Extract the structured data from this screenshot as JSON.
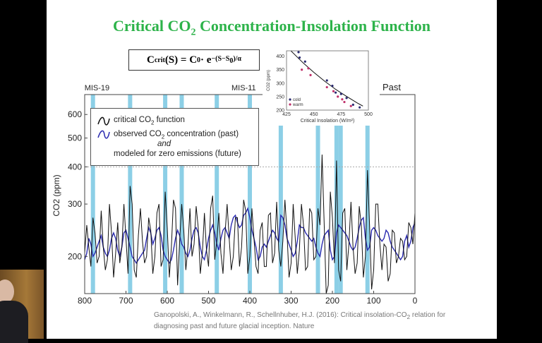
{
  "slide": {
    "title_main": "Critical CO",
    "title_sub": "2",
    "title_rest": " Concentration-Insolation Function",
    "formula": {
      "left": "C",
      "left_sub": "crit",
      "mid": "(S) = C",
      "c_sub": "0",
      "dot": " · e",
      "exp": "−(S−S",
      "exp_sub": "0",
      "exp_end": ")/α"
    },
    "citation_line1": "Ganopolski, A., Winkelmann, R., Schellnhuber, H.J. (2016): Critical insolation-CO",
    "citation_sub": "2",
    "citation_line1_end": " relation for",
    "citation_line2": "diagnosing past and future glacial inception. Nature"
  },
  "legend": {
    "critical": "critical CO",
    "critical_sub": "2",
    "critical_end": " function",
    "observed": "observed CO",
    "observed_sub": "2",
    "observed_end": " concentration (past)",
    "and": "and",
    "modeled": "modeled for zero emissions (future)"
  },
  "chart_data": [
    {
      "type": "line",
      "title": "",
      "ylabel": "CO2 (ppm)",
      "xlabel": "",
      "xlim": [
        800,
        0
      ],
      "ylim": [
        150,
        700
      ],
      "yscale": "log",
      "x_ticks": [
        800,
        700,
        600,
        500,
        400,
        300,
        200,
        100,
        0
      ],
      "y_ticks": [
        200,
        300,
        400,
        500,
        600
      ],
      "annotations": [
        "MIS-19",
        "MIS-11",
        "Past"
      ],
      "dashed_reference_y": 400,
      "colors": {
        "critical": "#111111",
        "observed": "#2a2ab0",
        "inception_band": "#8ccfe6"
      },
      "inception_bands_kyr": [
        780,
        690,
        605,
        565,
        480,
        400,
        325,
        235,
        190,
        180,
        115
      ],
      "series": [
        {
          "name": "critical CO2 function",
          "x": [
            800,
            795,
            790,
            785,
            780,
            775,
            770,
            765,
            760,
            755,
            750,
            745,
            740,
            735,
            730,
            725,
            720,
            715,
            710,
            705,
            700,
            695,
            690,
            685,
            680,
            675,
            670,
            665,
            660,
            655,
            650,
            645,
            640,
            635,
            630,
            625,
            620,
            615,
            610,
            605,
            600,
            595,
            590,
            585,
            580,
            575,
            570,
            565,
            560,
            555,
            550,
            545,
            540,
            535,
            530,
            525,
            520,
            515,
            510,
            505,
            500,
            495,
            490,
            485,
            480,
            475,
            470,
            465,
            460,
            455,
            450,
            445,
            440,
            435,
            430,
            425,
            420,
            415,
            410,
            405,
            400,
            395,
            390,
            385,
            380,
            375,
            370,
            365,
            360,
            355,
            350,
            345,
            340,
            335,
            330,
            325,
            320,
            315,
            310,
            305,
            300,
            295,
            290,
            285,
            280,
            275,
            270,
            265,
            260,
            255,
            250,
            245,
            240,
            235,
            230,
            225,
            220,
            215,
            210,
            205,
            200,
            195,
            190,
            185,
            180,
            175,
            170,
            165,
            160,
            155,
            150,
            145,
            140,
            135,
            130,
            125,
            120,
            115,
            110,
            105,
            100,
            95,
            90,
            85,
            80,
            75,
            70,
            65,
            60,
            55,
            50,
            45,
            40,
            35,
            30,
            25,
            20,
            15,
            10,
            5,
            0
          ],
          "values": [
            205,
            255,
            215,
            185,
            270,
            240,
            190,
            200,
            285,
            215,
            180,
            195,
            300,
            240,
            170,
            205,
            260,
            190,
            215,
            300,
            230,
            175,
            345,
            300,
            180,
            170,
            235,
            290,
            225,
            190,
            200,
            270,
            245,
            175,
            200,
            280,
            300,
            185,
            195,
            330,
            250,
            170,
            215,
            310,
            290,
            160,
            225,
            300,
            245,
            180,
            215,
            290,
            200,
            220,
            295,
            250,
            175,
            205,
            280,
            210,
            185,
            290,
            320,
            195,
            225,
            280,
            205,
            175,
            240,
            300,
            230,
            180,
            200,
            270,
            270,
            185,
            215,
            310,
            285,
            175,
            200,
            290,
            230,
            185,
            175,
            245,
            260,
            185,
            185,
            275,
            280,
            190,
            205,
            305,
            210,
            185,
            225,
            310,
            240,
            170,
            190,
            300,
            230,
            175,
            210,
            300,
            255,
            180,
            185,
            290,
            280,
            195,
            200,
            290,
            255,
            440,
            260,
            150,
            160,
            330,
            270,
            190,
            420,
            180,
            165,
            280,
            290,
            180,
            220,
            305,
            215,
            175,
            190,
            295,
            255,
            170,
            200,
            390,
            255,
            155,
            180,
            300,
            300,
            220,
            180,
            220,
            215,
            165,
            175,
            245,
            240,
            190,
            200,
            230,
            225,
            195,
            200,
            260,
            250,
            220,
            280
          ]
        },
        {
          "name": "observed CO2 concentration (past) and modeled for zero emissions (future)",
          "x": [
            800,
            795,
            790,
            785,
            780,
            775,
            770,
            765,
            760,
            755,
            750,
            745,
            740,
            735,
            730,
            725,
            720,
            715,
            710,
            705,
            700,
            695,
            690,
            685,
            680,
            675,
            670,
            665,
            660,
            655,
            650,
            645,
            640,
            635,
            630,
            625,
            620,
            615,
            610,
            605,
            600,
            595,
            590,
            585,
            580,
            575,
            570,
            565,
            560,
            555,
            550,
            545,
            540,
            535,
            530,
            525,
            520,
            515,
            510,
            505,
            500,
            495,
            490,
            485,
            480,
            475,
            470,
            465,
            460,
            455,
            450,
            445,
            440,
            435,
            430,
            425,
            420,
            415,
            410,
            405,
            400,
            395,
            390,
            385,
            380,
            375,
            370,
            365,
            360,
            355,
            350,
            345,
            340,
            335,
            330,
            325,
            320,
            315,
            310,
            305,
            300,
            295,
            290,
            285,
            280,
            275,
            270,
            265,
            260,
            255,
            250,
            245,
            240,
            235,
            230,
            225,
            220,
            215,
            210,
            205,
            200,
            195,
            190,
            185,
            180,
            175,
            170,
            165,
            160,
            155,
            150,
            145,
            140,
            135,
            130,
            125,
            120,
            115,
            110,
            105,
            100,
            95,
            90,
            85,
            80,
            75,
            70,
            65,
            60,
            55,
            50,
            45,
            40,
            35,
            30,
            25,
            20,
            15,
            10,
            5,
            0
          ],
          "values": [
            195,
            205,
            230,
            220,
            200,
            205,
            215,
            225,
            235,
            215,
            205,
            200,
            210,
            230,
            240,
            230,
            210,
            200,
            215,
            240,
            245,
            230,
            215,
            200,
            195,
            190,
            195,
            200,
            205,
            210,
            230,
            250,
            240,
            220,
            230,
            245,
            250,
            235,
            210,
            200,
            195,
            190,
            195,
            210,
            230,
            245,
            235,
            220,
            215,
            205,
            200,
            210,
            230,
            245,
            250,
            240,
            215,
            200,
            195,
            210,
            230,
            245,
            255,
            240,
            220,
            210,
            230,
            245,
            250,
            240,
            230,
            255,
            270,
            275,
            260,
            250,
            255,
            275,
            280,
            290,
            270,
            245,
            230,
            215,
            195,
            200,
            215,
            220,
            215,
            225,
            235,
            245,
            240,
            230,
            225,
            275,
            270,
            255,
            230,
            220,
            210,
            200,
            205,
            225,
            255,
            250,
            250,
            240,
            235,
            230,
            225,
            230,
            215,
            205,
            200,
            220,
            235,
            240,
            245,
            210,
            195,
            200,
            240,
            255,
            250,
            245,
            240,
            235,
            225,
            215,
            210,
            215,
            230,
            250,
            265,
            270,
            230,
            210,
            215,
            245,
            250,
            245,
            235,
            230,
            225,
            230,
            245,
            240,
            225,
            215,
            210,
            205,
            200,
            195,
            200,
            225,
            235,
            215,
            225,
            250,
            260
          ]
        }
      ]
    },
    {
      "type": "scatter",
      "title": "",
      "xlabel": "Critical Insolation (W/m²)",
      "ylabel": "CO2 (ppm)",
      "xlim": [
        425,
        500
      ],
      "ylim": [
        200,
        420
      ],
      "x_ticks": [
        425,
        450,
        475,
        500
      ],
      "y_ticks": [
        200,
        250,
        300,
        350,
        400
      ],
      "legend": {
        "placement": "bottom-left",
        "entries": [
          "cold",
          "warm"
        ]
      },
      "colors": {
        "cold": "#2a2a70",
        "warm": "#c0306a"
      },
      "series": [
        {
          "name": "cold",
          "x": [
            436,
            437,
            442,
            462,
            467,
            470,
            475,
            480,
            486,
            492
          ],
          "values": [
            415,
            395,
            380,
            310,
            290,
            265,
            260,
            245,
            220,
            210
          ]
        },
        {
          "name": "warm",
          "x": [
            439,
            445,
            447,
            462,
            468,
            472,
            476,
            478,
            484
          ],
          "values": [
            350,
            355,
            330,
            285,
            270,
            250,
            240,
            230,
            215
          ]
        }
      ],
      "fit_curve": {
        "x": [
          429,
          440,
          450,
          460,
          470,
          480,
          490,
          495
        ],
        "values": [
          420,
          376,
          340,
          307,
          277,
          251,
          226,
          215
        ]
      }
    }
  ]
}
